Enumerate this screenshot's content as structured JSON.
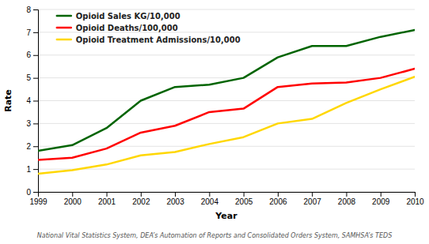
{
  "chart_data": {
    "type": "line",
    "xlabel": "Year",
    "ylabel": "Rate",
    "x": [
      1999,
      2000,
      2001,
      2002,
      2003,
      2004,
      2005,
      2006,
      2007,
      2008,
      2009,
      2010
    ],
    "xlim": [
      1999,
      2010
    ],
    "xticks": [
      1999,
      2000,
      2001,
      2002,
      2003,
      2004,
      2005,
      2006,
      2007,
      2008,
      2009,
      2010
    ],
    "ylim": [
      0,
      8
    ],
    "yticks": [
      0,
      1,
      2,
      3,
      4,
      5,
      6,
      7,
      8
    ],
    "grid": "y",
    "legend": "upper left",
    "series": [
      {
        "name": "Opioid Sales KG/10,000",
        "color": "#006400",
        "values": [
          1.8,
          2.05,
          2.8,
          4.0,
          4.6,
          4.7,
          5.0,
          5.9,
          6.4,
          6.4,
          6.8,
          7.1
        ]
      },
      {
        "name": "Opioid Deaths/100,000",
        "color": "#FF0000",
        "values": [
          1.4,
          1.5,
          1.9,
          2.6,
          2.9,
          3.5,
          3.65,
          4.6,
          4.75,
          4.8,
          5.0,
          5.4
        ]
      },
      {
        "name": "Opioid Treatment Admissions/10,000",
        "color": "#FFD700",
        "values": [
          0.8,
          0.95,
          1.2,
          1.6,
          1.75,
          2.1,
          2.4,
          3.0,
          3.2,
          3.9,
          4.5,
          5.05
        ]
      }
    ],
    "annotation": "National Vital Statistics System, DEA’s Automation of Reports and Consolidated Orders System, SAMHSA’s TEDS"
  }
}
